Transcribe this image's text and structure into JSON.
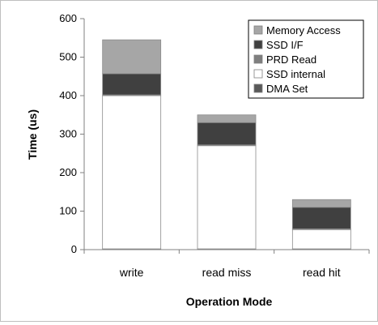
{
  "chart_data": {
    "type": "bar",
    "stacked": true,
    "categories": [
      "write",
      "read miss",
      "read hit"
    ],
    "series": [
      {
        "name": "DMA Set",
        "color": "#595959",
        "values": [
          2,
          2,
          2
        ]
      },
      {
        "name": "SSD internal",
        "color": "#ffffff",
        "values": [
          398,
          268,
          50
        ]
      },
      {
        "name": "PRD Read",
        "color": "#7f7f7f",
        "values": [
          2,
          2,
          2
        ]
      },
      {
        "name": "SSD I/F",
        "color": "#404040",
        "values": [
          55,
          58,
          56
        ]
      },
      {
        "name": "Memory Access",
        "color": "#a6a6a6",
        "values": [
          88,
          20,
          20
        ]
      }
    ],
    "legend_order": [
      "Memory Access",
      "SSD I/F",
      "PRD Read",
      "SSD internal",
      "DMA Set"
    ],
    "xlabel": "Operation Mode",
    "ylabel": "Time (us)",
    "ylim": [
      0,
      600
    ],
    "yticks": [
      0,
      100,
      200,
      300,
      400,
      500,
      600
    ],
    "grid": false,
    "legend_position": "top-right"
  }
}
